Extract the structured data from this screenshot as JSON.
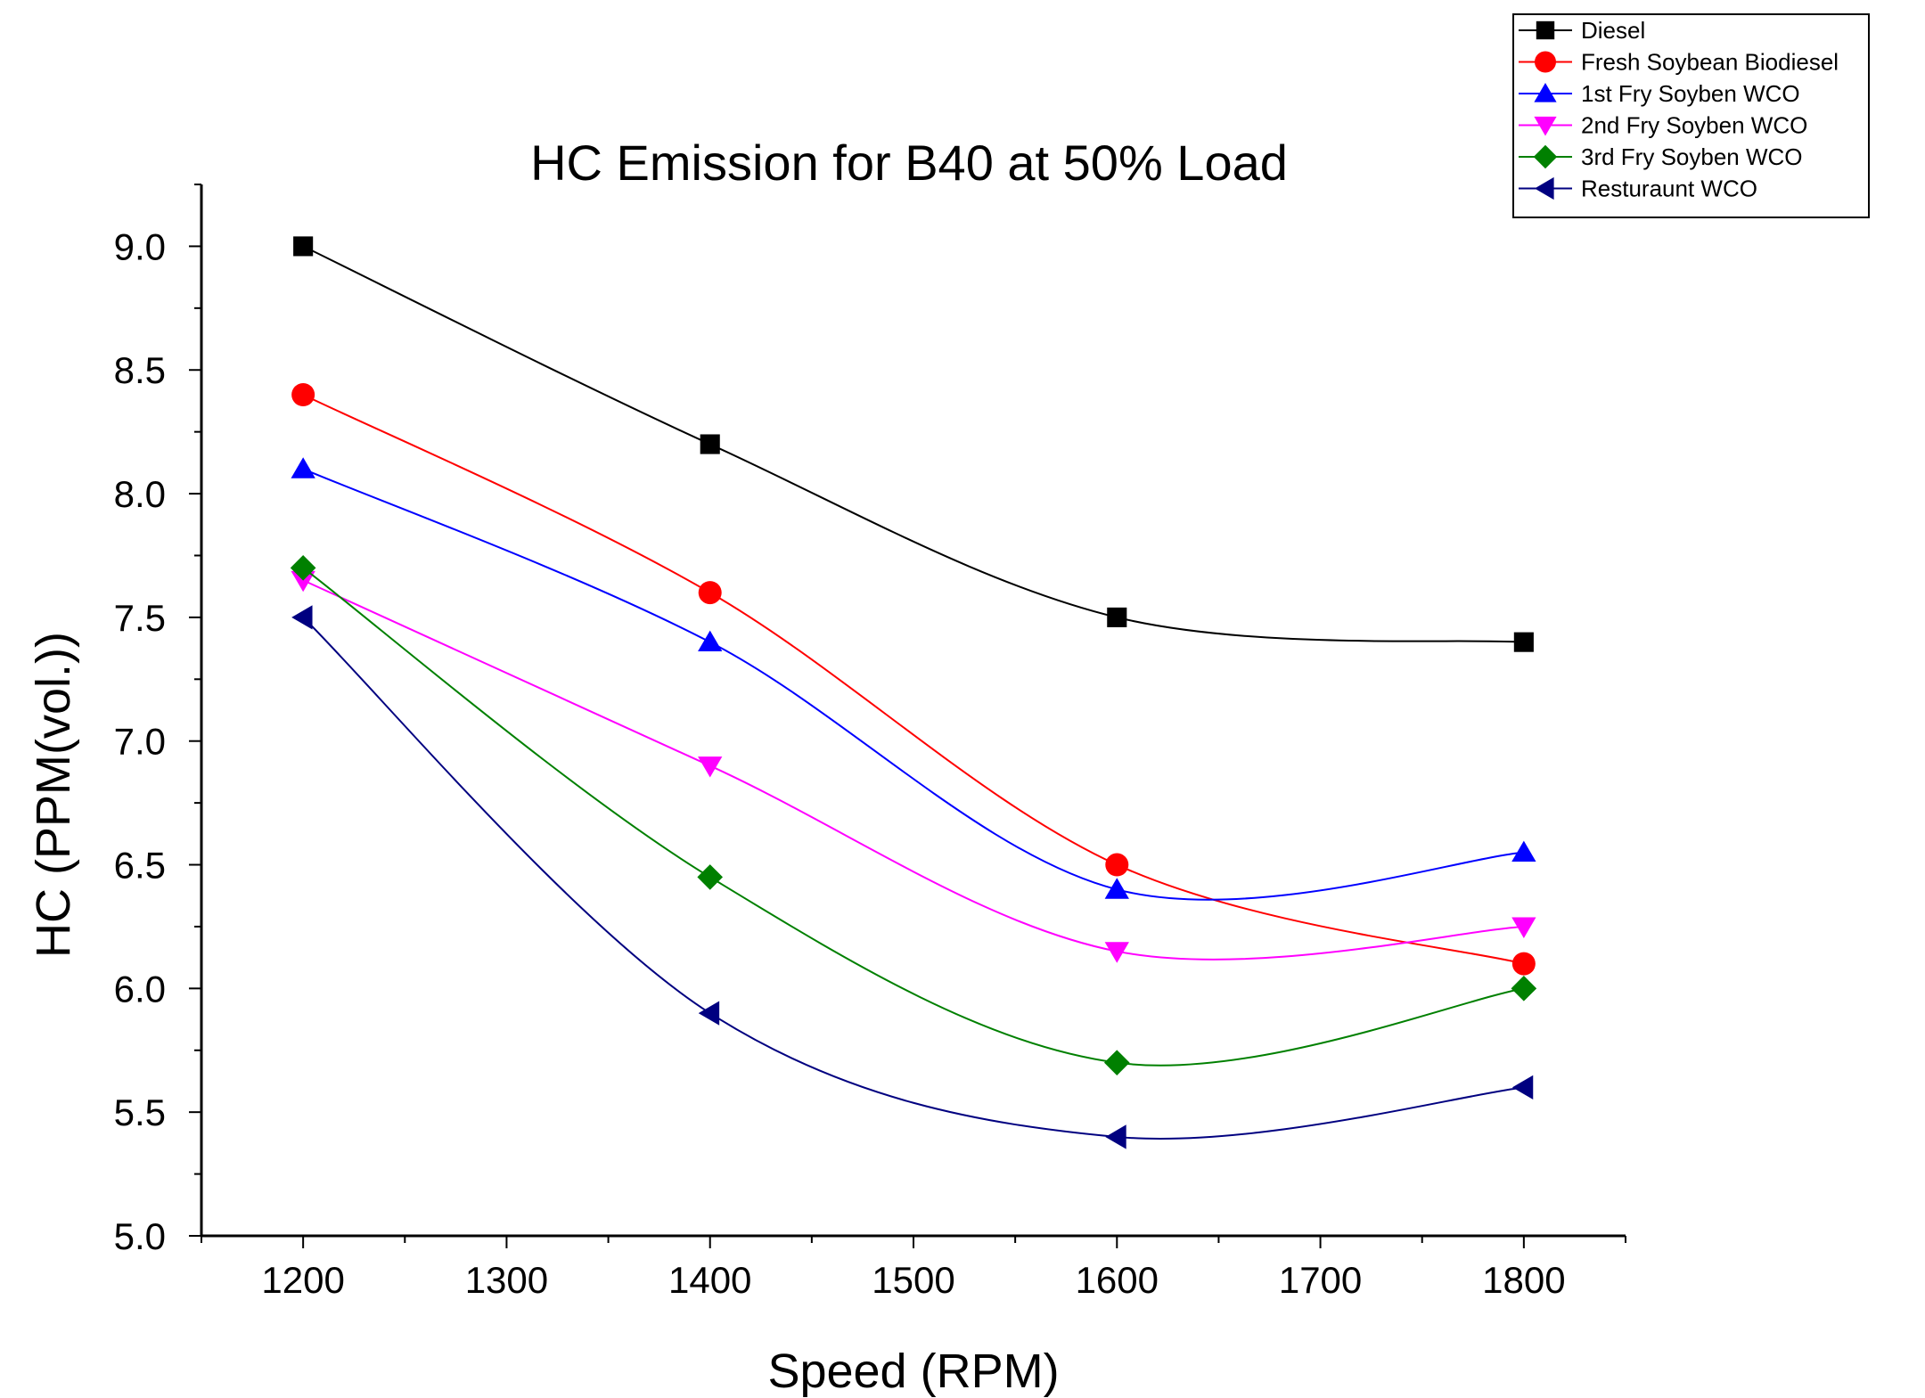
{
  "chart_data": {
    "type": "line",
    "title": "HC Emission for B40 at 50% Load",
    "xlabel": "Speed (RPM)",
    "ylabel": "HC (PPM(vol.))",
    "xlim": [
      1150,
      1850
    ],
    "ylim": [
      5.0,
      9.25
    ],
    "x_ticks": [
      "1200",
      "1300",
      "1400",
      "1500",
      "1600",
      "1700",
      "1800"
    ],
    "y_ticks": [
      "5.0",
      "5.5",
      "6.0",
      "6.5",
      "7.0",
      "7.5",
      "8.0",
      "8.5",
      "9.0"
    ],
    "x": [
      1200,
      1400,
      1600,
      1800
    ],
    "grid": false,
    "legend_position": "top-right",
    "smoothed_lines": true,
    "series": [
      {
        "name": "Diesel",
        "color": "#000000",
        "marker": "square",
        "values": [
          9.0,
          8.2,
          7.5,
          7.4
        ]
      },
      {
        "name": "Fresh Soybean Biodiesel",
        "color": "#ff0000",
        "marker": "circle",
        "values": [
          8.4,
          7.6,
          6.5,
          6.1
        ]
      },
      {
        "name": "1st Fry Soyben WCO",
        "color": "#0000ff",
        "marker": "triangle-up",
        "values": [
          8.1,
          7.4,
          6.4,
          6.55
        ]
      },
      {
        "name": "2nd Fry Soyben WCO",
        "color": "#ff00ff",
        "marker": "triangle-down",
        "values": [
          7.65,
          6.9,
          6.15,
          6.25
        ]
      },
      {
        "name": "3rd Fry Soyben WCO",
        "color": "#008000",
        "marker": "diamond",
        "values": [
          7.7,
          6.45,
          5.7,
          6.0
        ]
      },
      {
        "name": "Resturaunt WCO",
        "color": "#000080",
        "marker": "triangle-left",
        "values": [
          7.5,
          5.9,
          5.4,
          5.6
        ]
      }
    ]
  }
}
